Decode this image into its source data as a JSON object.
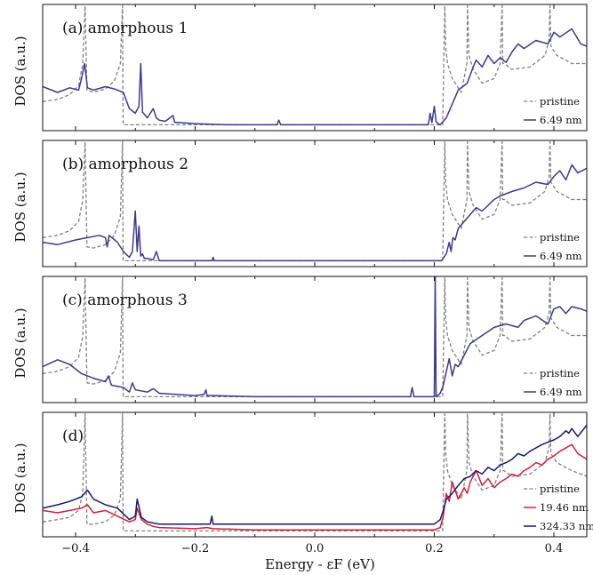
{
  "chart_data": [
    {
      "type": "line",
      "title": "(a) amorphous 1",
      "ylabel": "DOS (a.u.)",
      "xlim": [
        -0.455,
        0.455
      ],
      "legend": "right",
      "series": [
        {
          "name": "pristine",
          "color": "#808080",
          "style": "dashed",
          "x": [
            -0.455,
            -0.43,
            -0.41,
            -0.395,
            -0.388,
            -0.384,
            -0.381,
            -0.37,
            -0.35,
            -0.335,
            -0.325,
            -0.3215,
            -0.3205,
            -0.315,
            -0.3,
            -0.2,
            -0.1,
            0.0,
            0.1,
            0.2,
            0.214,
            0.2175,
            0.219,
            0.222,
            0.23,
            0.245,
            0.2545,
            0.2555,
            0.258,
            0.265,
            0.28,
            0.3,
            0.31,
            0.3135,
            0.3145,
            0.317,
            0.33,
            0.36,
            0.385,
            0.392,
            0.3935,
            0.395,
            0.405,
            0.43,
            0.455
          ],
          "values": [
            0.22,
            0.24,
            0.28,
            0.36,
            0.55,
            1.05,
            0.32,
            0.3,
            0.33,
            0.4,
            0.55,
            1.05,
            0.02,
            0.02,
            0.02,
            0.02,
            0.02,
            0.02,
            0.02,
            0.02,
            0.02,
            1.05,
            0.7,
            0.55,
            0.42,
            0.3,
            0.55,
            1.05,
            0.62,
            0.5,
            0.38,
            0.42,
            0.55,
            1.05,
            0.55,
            0.55,
            0.5,
            0.52,
            0.62,
            0.75,
            1.05,
            0.7,
            0.62,
            0.55,
            0.55
          ]
        },
        {
          "name": "6.49 nm",
          "color": "#3b3a8c",
          "style": "solid",
          "x": [
            -0.455,
            -0.43,
            -0.41,
            -0.395,
            -0.39,
            -0.385,
            -0.38,
            -0.37,
            -0.35,
            -0.335,
            -0.32,
            -0.31,
            -0.3,
            -0.294,
            -0.291,
            -0.288,
            -0.28,
            -0.27,
            -0.265,
            -0.26,
            -0.25,
            -0.237,
            -0.234,
            -0.23,
            -0.2,
            -0.15,
            -0.063,
            -0.06,
            -0.057,
            0.0,
            0.1,
            0.19,
            0.193,
            0.196,
            0.2,
            0.203,
            0.206,
            0.21,
            0.22,
            0.24,
            0.255,
            0.26,
            0.265,
            0.27,
            0.28,
            0.29,
            0.3,
            0.31,
            0.32,
            0.33,
            0.34,
            0.35,
            0.37,
            0.39,
            0.4,
            0.41,
            0.43,
            0.445,
            0.455
          ],
          "values": [
            0.35,
            0.3,
            0.34,
            0.32,
            0.42,
            0.55,
            0.34,
            0.32,
            0.35,
            0.33,
            0.3,
            0.16,
            0.12,
            0.18,
            0.55,
            0.13,
            0.08,
            0.16,
            0.08,
            0.06,
            0.05,
            0.1,
            0.04,
            0.04,
            0.03,
            0.02,
            0.02,
            0.06,
            0.02,
            0.02,
            0.02,
            0.02,
            0.12,
            0.04,
            0.18,
            0.05,
            0.03,
            0.02,
            0.08,
            0.32,
            0.38,
            0.45,
            0.52,
            0.58,
            0.52,
            0.62,
            0.55,
            0.6,
            0.56,
            0.65,
            0.72,
            0.68,
            0.75,
            0.72,
            0.82,
            0.78,
            0.85,
            0.72,
            0.7
          ]
        }
      ]
    },
    {
      "type": "line",
      "title": "(b) amorphous 2",
      "ylabel": "DOS (a.u.)",
      "xlim": [
        -0.455,
        0.455
      ],
      "legend": "right",
      "series": [
        {
          "name": "pristine",
          "color": "#808080",
          "style": "dashed",
          "x": [
            -0.455,
            -0.43,
            -0.41,
            -0.395,
            -0.388,
            -0.384,
            -0.381,
            -0.37,
            -0.35,
            -0.335,
            -0.325,
            -0.3215,
            -0.3205,
            -0.315,
            -0.3,
            -0.2,
            -0.1,
            0.0,
            0.1,
            0.2,
            0.214,
            0.2175,
            0.219,
            0.222,
            0.23,
            0.245,
            0.2545,
            0.2555,
            0.258,
            0.265,
            0.28,
            0.3,
            0.31,
            0.3135,
            0.3145,
            0.317,
            0.33,
            0.36,
            0.385,
            0.392,
            0.3935,
            0.395,
            0.405,
            0.43,
            0.455
          ],
          "values": [
            0.22,
            0.24,
            0.28,
            0.36,
            0.55,
            1.05,
            0.14,
            0.13,
            0.16,
            0.24,
            0.4,
            1.05,
            0.02,
            0.02,
            0.02,
            0.02,
            0.02,
            0.02,
            0.02,
            0.02,
            0.02,
            1.05,
            0.7,
            0.55,
            0.42,
            0.3,
            0.55,
            1.05,
            0.62,
            0.5,
            0.38,
            0.42,
            0.55,
            1.05,
            0.55,
            0.55,
            0.5,
            0.52,
            0.62,
            0.75,
            1.05,
            0.7,
            0.62,
            0.55,
            0.55
          ]
        },
        {
          "name": "6.49 nm",
          "color": "#3b3a8c",
          "style": "solid",
          "x": [
            -0.455,
            -0.43,
            -0.4,
            -0.38,
            -0.36,
            -0.35,
            -0.347,
            -0.344,
            -0.33,
            -0.32,
            -0.31,
            -0.305,
            -0.3,
            -0.297,
            -0.294,
            -0.291,
            -0.288,
            -0.285,
            -0.28,
            -0.27,
            -0.265,
            -0.26,
            -0.2,
            -0.172,
            -0.17,
            -0.168,
            -0.1,
            0.0,
            0.1,
            0.2,
            0.212,
            0.22,
            0.225,
            0.228,
            0.231,
            0.235,
            0.24,
            0.25,
            0.26,
            0.27,
            0.28,
            0.3,
            0.31,
            0.32,
            0.33,
            0.35,
            0.37,
            0.39,
            0.4,
            0.41,
            0.42,
            0.43,
            0.44,
            0.455
          ],
          "values": [
            0.18,
            0.16,
            0.2,
            0.22,
            0.24,
            0.22,
            0.14,
            0.24,
            0.18,
            0.1,
            0.05,
            0.1,
            0.45,
            0.1,
            0.32,
            0.06,
            0.08,
            0.04,
            0.04,
            0.03,
            0.1,
            0.02,
            0.02,
            0.02,
            0.05,
            0.02,
            0.02,
            0.02,
            0.02,
            0.02,
            0.02,
            0.08,
            0.18,
            0.1,
            0.22,
            0.2,
            0.3,
            0.36,
            0.42,
            0.48,
            0.45,
            0.55,
            0.58,
            0.6,
            0.62,
            0.65,
            0.7,
            0.68,
            0.75,
            0.8,
            0.72,
            0.85,
            0.78,
            0.82
          ]
        }
      ]
    },
    {
      "type": "line",
      "title": "(c) amorphous 3",
      "ylabel": "DOS (a.u.)",
      "xlim": [
        -0.455,
        0.455
      ],
      "legend": "right",
      "series": [
        {
          "name": "pristine",
          "color": "#808080",
          "style": "dashed",
          "x": [
            -0.455,
            -0.43,
            -0.41,
            -0.395,
            -0.388,
            -0.384,
            -0.381,
            -0.37,
            -0.35,
            -0.335,
            -0.325,
            -0.3215,
            -0.3205,
            -0.315,
            -0.3,
            -0.2,
            -0.1,
            0.0,
            0.1,
            0.2,
            0.214,
            0.2175,
            0.219,
            0.222,
            0.23,
            0.245,
            0.2545,
            0.2555,
            0.258,
            0.265,
            0.28,
            0.3,
            0.31,
            0.3135,
            0.3145,
            0.317,
            0.33,
            0.36,
            0.385,
            0.392,
            0.3935,
            0.395,
            0.405,
            0.43,
            0.455
          ],
          "values": [
            0.22,
            0.24,
            0.28,
            0.36,
            0.55,
            1.05,
            0.14,
            0.13,
            0.16,
            0.24,
            0.4,
            1.05,
            0.02,
            0.02,
            0.02,
            0.02,
            0.02,
            0.02,
            0.02,
            0.02,
            0.02,
            1.05,
            0.7,
            0.55,
            0.42,
            0.3,
            0.55,
            1.05,
            0.62,
            0.5,
            0.38,
            0.42,
            0.55,
            1.05,
            0.55,
            0.55,
            0.5,
            0.52,
            0.62,
            0.75,
            1.05,
            0.7,
            0.62,
            0.55,
            0.55
          ]
        },
        {
          "name": "6.49 nm",
          "color": "#3b3a8c",
          "style": "solid",
          "x": [
            -0.455,
            -0.43,
            -0.41,
            -0.39,
            -0.37,
            -0.35,
            -0.345,
            -0.34,
            -0.32,
            -0.31,
            -0.305,
            -0.3,
            -0.28,
            -0.27,
            -0.26,
            -0.2,
            -0.185,
            -0.182,
            -0.18,
            -0.17,
            -0.1,
            0.0,
            0.1,
            0.16,
            0.163,
            0.166,
            0.2,
            0.2015,
            0.203,
            0.21,
            0.215,
            0.225,
            0.23,
            0.235,
            0.24,
            0.26,
            0.28,
            0.3,
            0.32,
            0.34,
            0.35,
            0.37,
            0.39,
            0.4,
            0.41,
            0.42,
            0.43,
            0.445,
            0.455
          ],
          "values": [
            0.28,
            0.34,
            0.3,
            0.22,
            0.18,
            0.15,
            0.2,
            0.12,
            0.1,
            0.06,
            0.14,
            0.08,
            0.06,
            0.09,
            0.05,
            0.03,
            0.04,
            0.08,
            0.03,
            0.03,
            0.02,
            0.02,
            0.02,
            0.02,
            0.1,
            0.02,
            0.02,
            1.1,
            0.02,
            0.05,
            0.12,
            0.35,
            0.2,
            0.3,
            0.28,
            0.48,
            0.55,
            0.62,
            0.65,
            0.62,
            0.68,
            0.72,
            0.65,
            0.78,
            0.8,
            0.74,
            0.8,
            0.78,
            0.76
          ]
        }
      ]
    },
    {
      "type": "line",
      "title": "(d)",
      "ylabel": "DOS (a.u.)",
      "xlabel": "Energy - εF (eV)",
      "xlim": [
        -0.455,
        0.455
      ],
      "xticks": [
        -0.4,
        -0.2,
        0.0,
        0.2,
        0.4
      ],
      "xtick_labels": [
        "−0.4",
        "−0.2",
        "0.0",
        "0.2",
        "0.4"
      ],
      "legend": "right",
      "series": [
        {
          "name": "pristine",
          "color": "#808080",
          "style": "dashed",
          "x": [
            -0.455,
            -0.43,
            -0.41,
            -0.395,
            -0.388,
            -0.384,
            -0.381,
            -0.37,
            -0.35,
            -0.335,
            -0.325,
            -0.3215,
            -0.3205,
            -0.315,
            -0.3,
            -0.2,
            -0.1,
            0.0,
            0.1,
            0.2,
            0.214,
            0.2175,
            0.219,
            0.222,
            0.23,
            0.245,
            0.2545,
            0.2555,
            0.258,
            0.265,
            0.28,
            0.3,
            0.31,
            0.3135,
            0.3145,
            0.317,
            0.33,
            0.36,
            0.385,
            0.392,
            0.3935,
            0.395,
            0.405,
            0.43,
            0.455
          ],
          "values": [
            0.1,
            0.12,
            0.14,
            0.2,
            0.35,
            1.05,
            0.08,
            0.08,
            0.1,
            0.16,
            0.3,
            1.05,
            0.02,
            0.02,
            0.02,
            0.02,
            0.02,
            0.02,
            0.02,
            0.02,
            0.02,
            1.05,
            0.7,
            0.55,
            0.42,
            0.3,
            0.55,
            1.05,
            0.62,
            0.5,
            0.38,
            0.42,
            0.55,
            1.05,
            0.55,
            0.55,
            0.5,
            0.52,
            0.62,
            0.75,
            1.05,
            0.7,
            0.62,
            0.55,
            0.5
          ]
        },
        {
          "name": "19.46 nm",
          "color": "#d0203a",
          "style": "solid",
          "x": [
            -0.455,
            -0.43,
            -0.41,
            -0.39,
            -0.38,
            -0.37,
            -0.35,
            -0.33,
            -0.31,
            -0.3,
            -0.297,
            -0.29,
            -0.28,
            -0.27,
            -0.26,
            -0.2,
            -0.18,
            -0.17,
            -0.1,
            0.0,
            0.1,
            0.2,
            0.21,
            0.215,
            0.22,
            0.225,
            0.23,
            0.24,
            0.25,
            0.255,
            0.26,
            0.27,
            0.28,
            0.29,
            0.3,
            0.31,
            0.32,
            0.33,
            0.34,
            0.35,
            0.36,
            0.37,
            0.38,
            0.39,
            0.4,
            0.41,
            0.42,
            0.43,
            0.44,
            0.455
          ],
          "values": [
            0.2,
            0.18,
            0.2,
            0.22,
            0.25,
            0.18,
            0.2,
            0.15,
            0.1,
            0.12,
            0.22,
            0.12,
            0.08,
            0.06,
            0.05,
            0.04,
            0.05,
            0.04,
            0.03,
            0.03,
            0.03,
            0.03,
            0.05,
            0.15,
            0.35,
            0.28,
            0.45,
            0.3,
            0.4,
            0.35,
            0.45,
            0.55,
            0.42,
            0.48,
            0.4,
            0.45,
            0.48,
            0.52,
            0.5,
            0.55,
            0.58,
            0.62,
            0.6,
            0.65,
            0.68,
            0.72,
            0.75,
            0.78,
            0.7,
            0.65
          ]
        },
        {
          "name": "324.33 nm",
          "color": "#141a6e",
          "style": "solid",
          "x": [
            -0.455,
            -0.43,
            -0.41,
            -0.39,
            -0.38,
            -0.37,
            -0.35,
            -0.33,
            -0.31,
            -0.3,
            -0.297,
            -0.29,
            -0.28,
            -0.27,
            -0.26,
            -0.2,
            -0.175,
            -0.172,
            -0.17,
            -0.1,
            0.0,
            0.1,
            0.2,
            0.205,
            0.21,
            0.215,
            0.22,
            0.23,
            0.24,
            0.25,
            0.26,
            0.27,
            0.28,
            0.29,
            0.3,
            0.31,
            0.32,
            0.33,
            0.34,
            0.35,
            0.36,
            0.37,
            0.38,
            0.39,
            0.4,
            0.41,
            0.42,
            0.425,
            0.43,
            0.44,
            0.455
          ],
          "values": [
            0.22,
            0.25,
            0.28,
            0.32,
            0.38,
            0.3,
            0.25,
            0.22,
            0.12,
            0.15,
            0.3,
            0.14,
            0.1,
            0.09,
            0.08,
            0.08,
            0.08,
            0.15,
            0.08,
            0.08,
            0.08,
            0.08,
            0.08,
            0.1,
            0.12,
            0.2,
            0.3,
            0.35,
            0.42,
            0.48,
            0.5,
            0.55,
            0.52,
            0.58,
            0.55,
            0.6,
            0.62,
            0.65,
            0.7,
            0.68,
            0.72,
            0.75,
            0.78,
            0.8,
            0.82,
            0.85,
            0.9,
            0.88,
            0.92,
            0.85,
            0.95
          ]
        }
      ]
    }
  ]
}
